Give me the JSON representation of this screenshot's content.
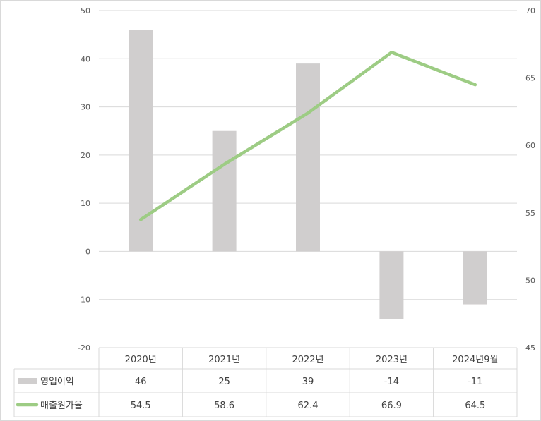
{
  "chart_data": {
    "type": "bar",
    "categories": [
      "2020년",
      "2021년",
      "2022년",
      "2023년",
      "2024년9월"
    ],
    "series": [
      {
        "name": "영업이익",
        "type": "bar",
        "axis": "left",
        "color": "#d0cece",
        "values": [
          46,
          25,
          39,
          -14,
          -11
        ]
      },
      {
        "name": "매출원가율",
        "type": "line",
        "axis": "right",
        "color": "#9dcc84",
        "values": [
          54.5,
          58.6,
          62.4,
          66.9,
          64.5
        ]
      }
    ],
    "y_left": {
      "ylim": [
        -20,
        50
      ],
      "ticks": [
        "50",
        "40",
        "30",
        "20",
        "10",
        "0",
        "-10",
        "-20"
      ]
    },
    "y_right": {
      "ylim": [
        45,
        70
      ],
      "ticks": [
        "70",
        "65",
        "60",
        "55",
        "50",
        "45"
      ]
    },
    "grid": true,
    "legend": "data-table"
  },
  "table": {
    "rows": [
      {
        "label": "영업이익",
        "cells": [
          "46",
          "25",
          "39",
          "-14",
          "-11"
        ]
      },
      {
        "label": "매출원가율",
        "cells": [
          "54.5",
          "58.6",
          "62.4",
          "66.9",
          "64.5"
        ]
      }
    ]
  }
}
